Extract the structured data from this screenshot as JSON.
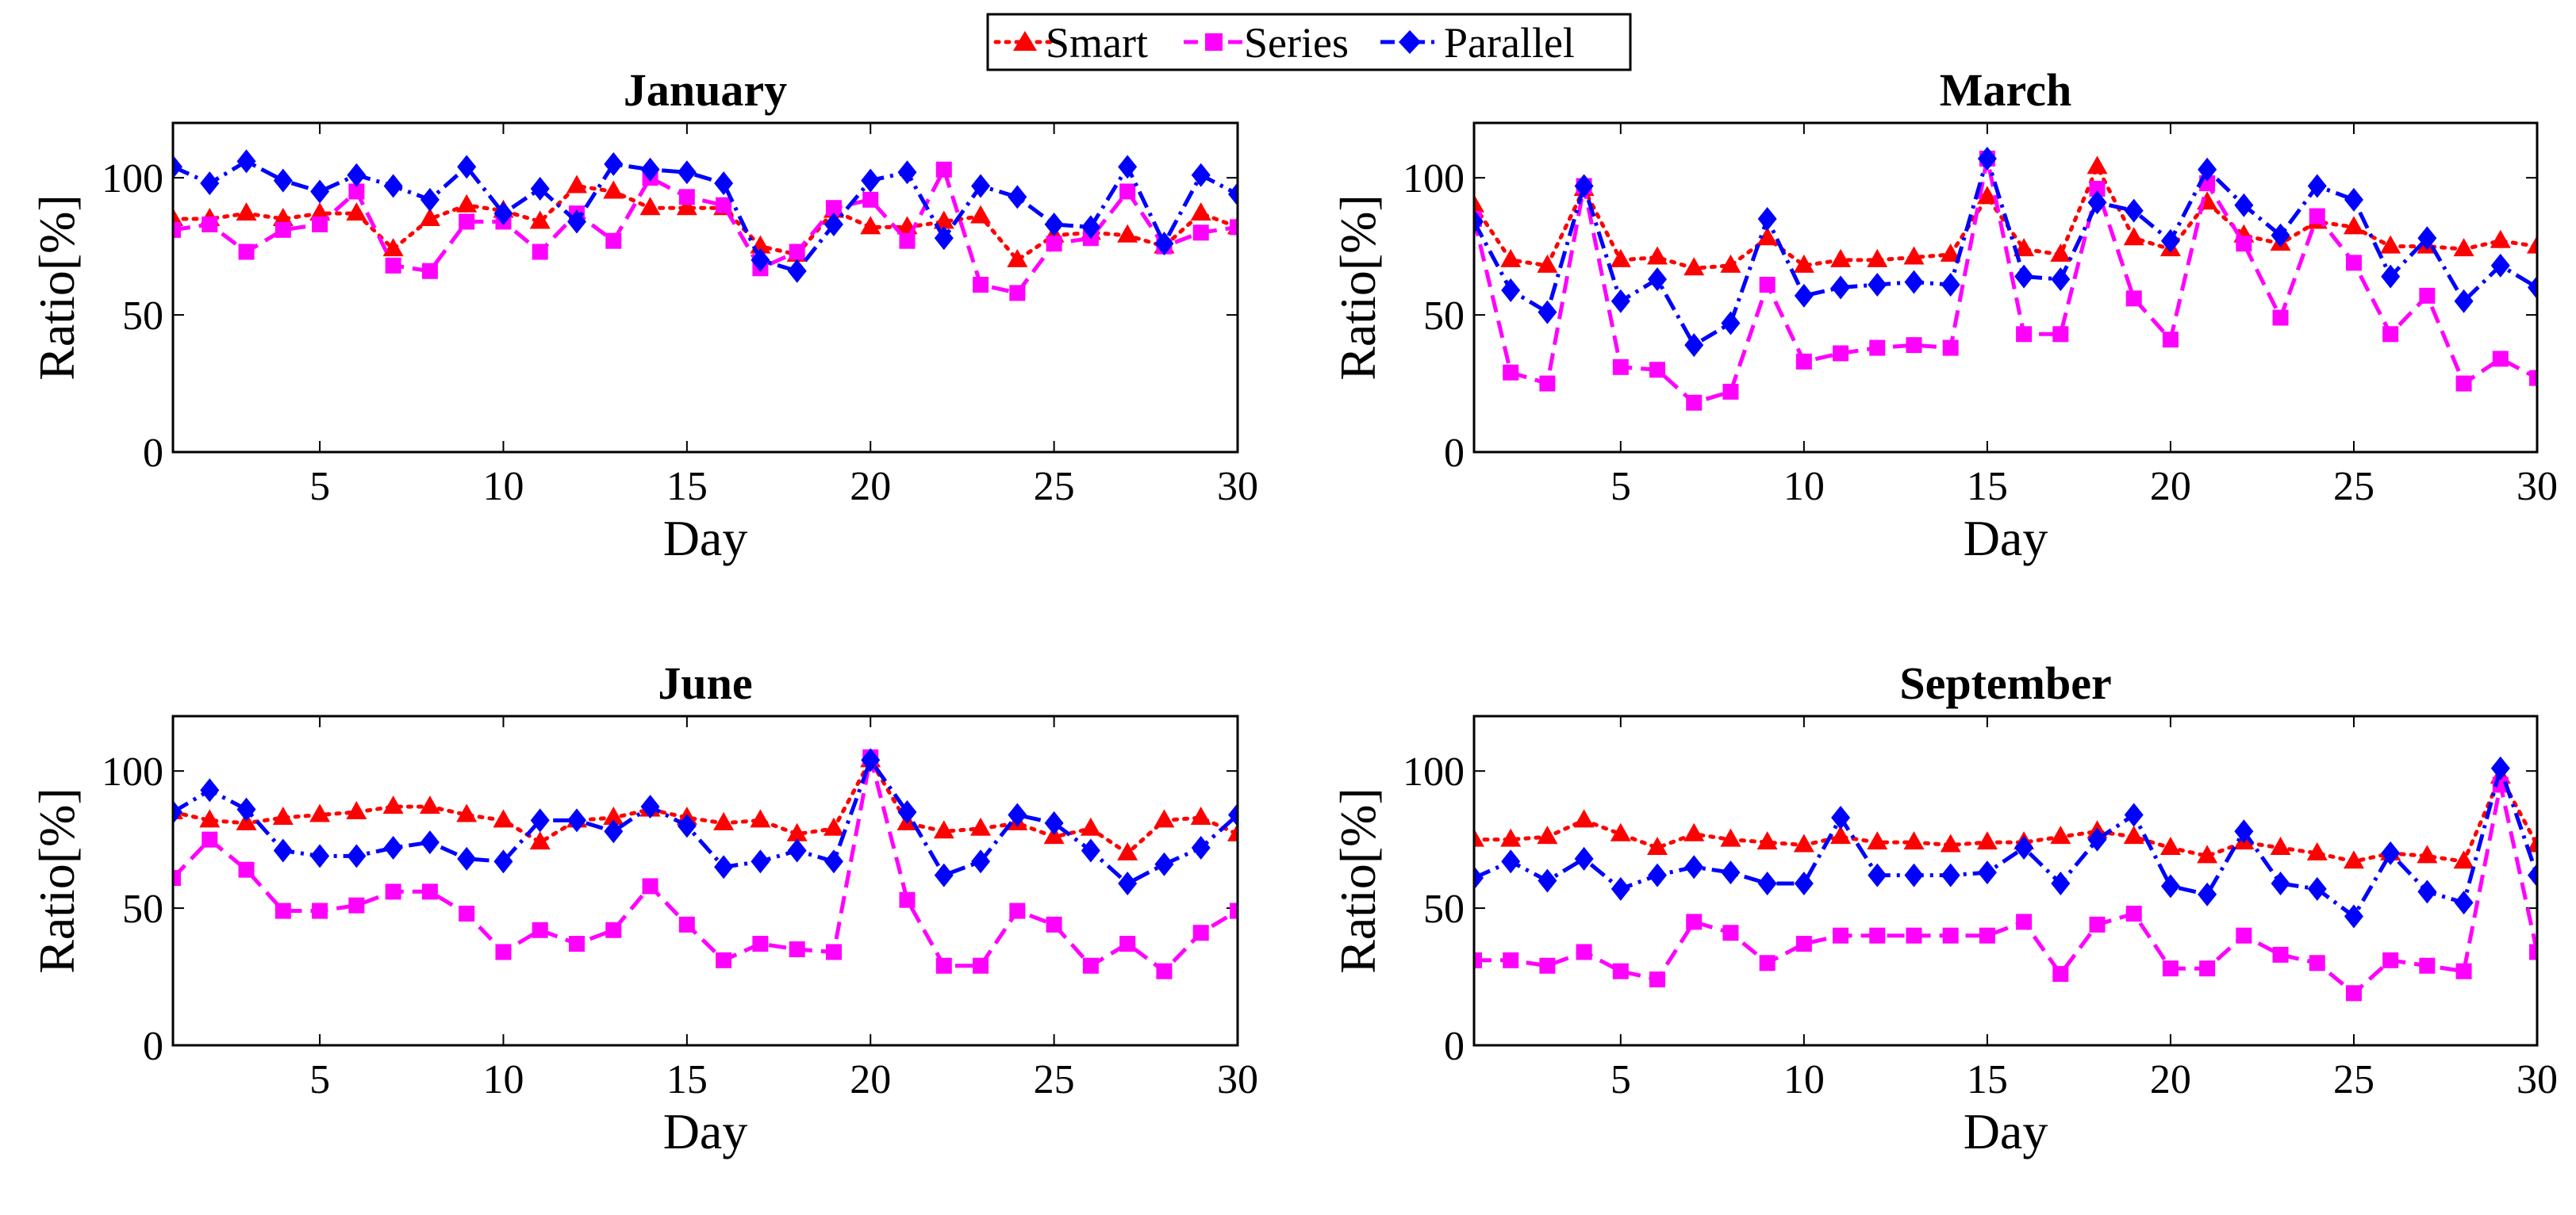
{
  "legend": {
    "entries": [
      {
        "name": "Smart",
        "color": "#ff0000",
        "marker": "triangle",
        "dash": "dotted"
      },
      {
        "name": "Series",
        "color": "#ff00ff",
        "marker": "square",
        "dash": "dashed"
      },
      {
        "name": "Parallel",
        "color": "#0000ff",
        "marker": "diamond",
        "dash": "dashdot"
      }
    ]
  },
  "chart_data": [
    {
      "type": "line",
      "title": "January",
      "xlabel": "Day",
      "ylabel": "Ratio[%]",
      "xlim": [
        1,
        30
      ],
      "ylim": [
        0,
        120
      ],
      "xticks": [
        5,
        10,
        15,
        20,
        25,
        30
      ],
      "yticks": [
        0,
        50,
        100
      ],
      "x": [
        1,
        2,
        3,
        4,
        5,
        6,
        7,
        8,
        9,
        10,
        11,
        12,
        13,
        14,
        15,
        16,
        17,
        18,
        19,
        20,
        21,
        22,
        23,
        24,
        25,
        26,
        27,
        28,
        29,
        30
      ],
      "series": [
        {
          "name": "Smart",
          "values": [
            85,
            85,
            87,
            85,
            87,
            87,
            74,
            85,
            90,
            88,
            84,
            97,
            95,
            89,
            89,
            89,
            75,
            72,
            88,
            82,
            82,
            84,
            86,
            70,
            79,
            80,
            79,
            75,
            87,
            82
          ]
        },
        {
          "name": "Series",
          "values": [
            81,
            83,
            73,
            81,
            83,
            95,
            68,
            66,
            84,
            84,
            73,
            87,
            77,
            100,
            93,
            90,
            67,
            73,
            89,
            92,
            77,
            103,
            61,
            58,
            76,
            78,
            95,
            75,
            80,
            82
          ]
        },
        {
          "name": "Parallel",
          "values": [
            104,
            98,
            106,
            99,
            95,
            101,
            97,
            92,
            104,
            87,
            96,
            84,
            105,
            103,
            102,
            98,
            70,
            66,
            83,
            99,
            102,
            78,
            97,
            93,
            83,
            82,
            104,
            76,
            101,
            94
          ]
        }
      ]
    },
    {
      "type": "line",
      "title": "March",
      "xlabel": "Day",
      "ylabel": "Ratio[%]",
      "xlim": [
        1,
        30
      ],
      "ylim": [
        0,
        120
      ],
      "xticks": [
        5,
        10,
        15,
        20,
        25,
        30
      ],
      "yticks": [
        0,
        50,
        100
      ],
      "x": [
        1,
        2,
        3,
        4,
        5,
        6,
        7,
        8,
        9,
        10,
        11,
        12,
        13,
        14,
        15,
        16,
        17,
        18,
        19,
        20,
        21,
        22,
        23,
        24,
        25,
        26,
        27,
        28,
        29,
        30
      ],
      "series": [
        {
          "name": "Smart",
          "values": [
            90,
            70,
            68,
            96,
            70,
            71,
            67,
            68,
            78,
            68,
            70,
            70,
            71,
            72,
            93,
            74,
            72,
            104,
            78,
            74,
            91,
            79,
            76,
            84,
            82,
            75,
            75,
            74,
            77,
            75
          ]
        },
        {
          "name": "Series",
          "values": [
            85,
            29,
            25,
            97,
            31,
            30,
            18,
            22,
            61,
            33,
            36,
            38,
            39,
            38,
            107,
            43,
            43,
            96,
            56,
            41,
            98,
            76,
            49,
            86,
            69,
            43,
            57,
            25,
            34,
            27
          ]
        },
        {
          "name": "Parallel",
          "values": [
            84,
            59,
            51,
            97,
            55,
            63,
            39,
            47,
            85,
            57,
            60,
            61,
            62,
            61,
            107,
            64,
            63,
            91,
            88,
            77,
            103,
            90,
            79,
            97,
            92,
            64,
            78,
            55,
            68,
            60
          ]
        }
      ]
    },
    {
      "type": "line",
      "title": "June",
      "xlabel": "Day",
      "ylabel": "Ratio[%]",
      "xlim": [
        1,
        30
      ],
      "ylim": [
        0,
        120
      ],
      "xticks": [
        5,
        10,
        15,
        20,
        25,
        30
      ],
      "yticks": [
        0,
        50,
        100
      ],
      "x": [
        1,
        2,
        3,
        4,
        5,
        6,
        7,
        8,
        9,
        10,
        11,
        12,
        13,
        14,
        15,
        16,
        17,
        18,
        19,
        20,
        21,
        22,
        23,
        24,
        25,
        26,
        27,
        28,
        29,
        30
      ],
      "series": [
        {
          "name": "Smart",
          "values": [
            85,
            82,
            81,
            83,
            84,
            85,
            87,
            87,
            84,
            82,
            74,
            82,
            83,
            86,
            83,
            81,
            82,
            77,
            79,
            104,
            81,
            78,
            79,
            81,
            76,
            79,
            70,
            82,
            83,
            77
          ]
        },
        {
          "name": "Series",
          "values": [
            61,
            75,
            64,
            49,
            49,
            51,
            56,
            56,
            48,
            34,
            42,
            37,
            42,
            58,
            44,
            31,
            37,
            35,
            34,
            105,
            53,
            29,
            29,
            49,
            44,
            29,
            37,
            27,
            41,
            49
          ]
        },
        {
          "name": "Parallel",
          "values": [
            85,
            93,
            86,
            71,
            69,
            69,
            72,
            74,
            68,
            67,
            82,
            82,
            78,
            87,
            80,
            65,
            67,
            71,
            67,
            104,
            85,
            62,
            67,
            84,
            81,
            71,
            59,
            66,
            72,
            84
          ]
        }
      ]
    },
    {
      "type": "line",
      "title": "September",
      "xlabel": "Day",
      "ylabel": "Ratio[%]",
      "xlim": [
        1,
        30
      ],
      "ylim": [
        0,
        120
      ],
      "xticks": [
        5,
        10,
        15,
        20,
        25,
        30
      ],
      "yticks": [
        0,
        50,
        100
      ],
      "x": [
        1,
        2,
        3,
        4,
        5,
        6,
        7,
        8,
        9,
        10,
        11,
        12,
        13,
        14,
        15,
        16,
        17,
        18,
        19,
        20,
        21,
        22,
        23,
        24,
        25,
        26,
        27,
        28,
        29,
        30
      ],
      "series": [
        {
          "name": "Smart",
          "values": [
            75,
            75,
            76,
            82,
            77,
            72,
            77,
            75,
            74,
            73,
            76,
            74,
            74,
            73,
            74,
            74,
            76,
            78,
            76,
            72,
            69,
            74,
            72,
            70,
            67,
            70,
            69,
            67,
            98,
            73
          ]
        },
        {
          "name": "Series",
          "values": [
            31,
            31,
            29,
            34,
            27,
            24,
            45,
            41,
            30,
            37,
            40,
            40,
            40,
            40,
            40,
            45,
            26,
            44,
            48,
            28,
            28,
            40,
            33,
            30,
            19,
            31,
            29,
            27,
            95,
            34
          ]
        },
        {
          "name": "Parallel",
          "values": [
            61,
            67,
            60,
            68,
            57,
            62,
            65,
            63,
            59,
            59,
            83,
            62,
            62,
            62,
            63,
            72,
            59,
            75,
            84,
            58,
            55,
            78,
            59,
            57,
            47,
            70,
            56,
            52,
            101,
            62
          ]
        }
      ]
    }
  ]
}
